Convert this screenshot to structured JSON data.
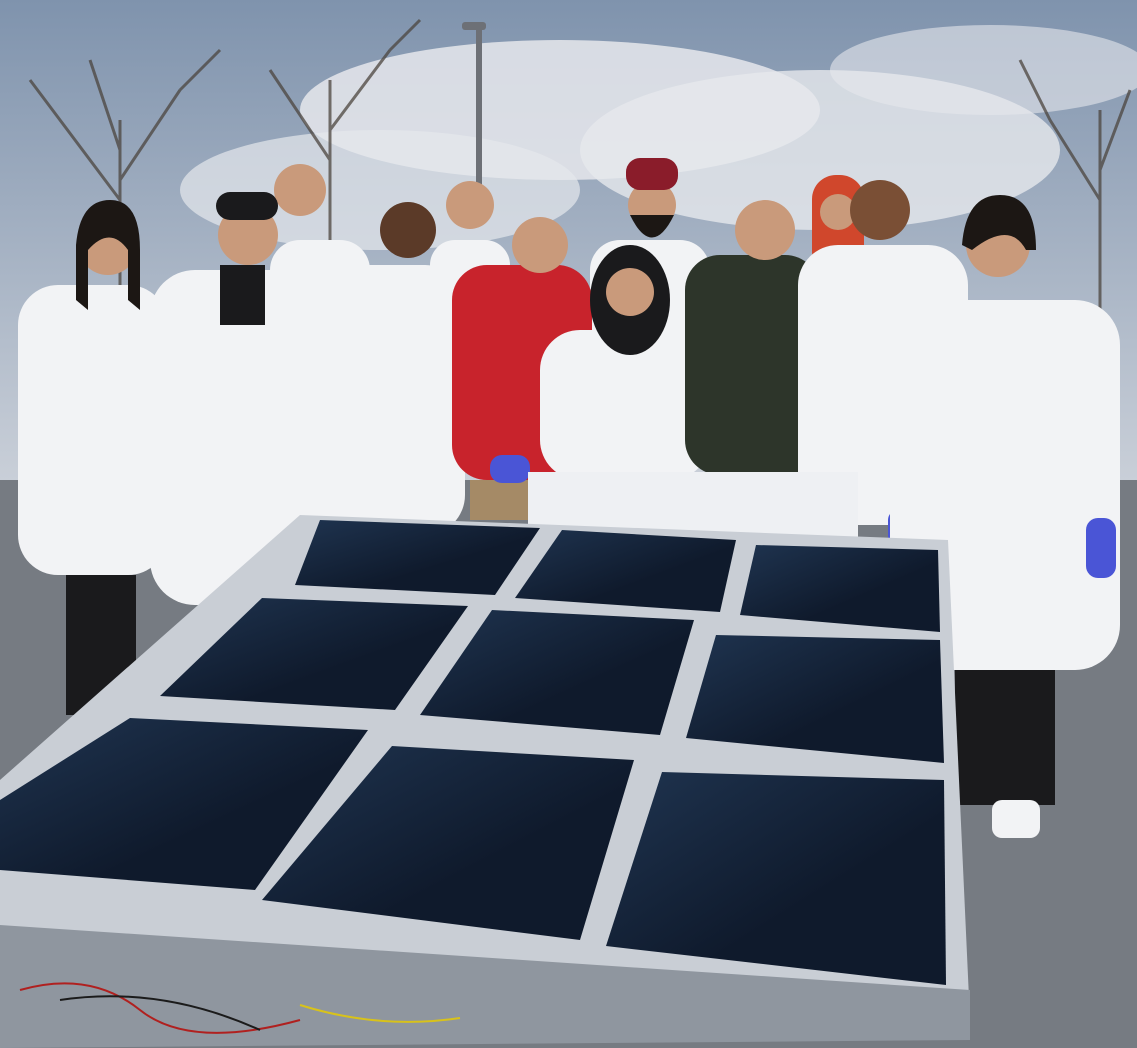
{
  "scene": {
    "colors": {
      "sky_top": "#7f93ad",
      "sky_bottom": "#c9cfd8",
      "cloud": "#e6e8ec",
      "ground": "#767b82",
      "lab_coat": "#f2f3f5",
      "coat_shadow": "#cfd3d9",
      "red_jacket": "#c8232c",
      "green_jacket": "#2d352a",
      "solar_panel": "#0f1a2c",
      "panel_sheen": "#1f3450",
      "frame": "#c9ced5",
      "frame_dark": "#8f969f",
      "skin": "#c99a7b",
      "hair": "#1c1714",
      "glove": "#4a55d6",
      "headscarf": "#d0472c",
      "turban": "#8a1c2a",
      "pole": "#6d7076"
    },
    "icons": [
      "bare-tree",
      "street-lamp",
      "person-in-lab-coat",
      "solar-module-array",
      "aluminum-frame",
      "cables"
    ]
  }
}
